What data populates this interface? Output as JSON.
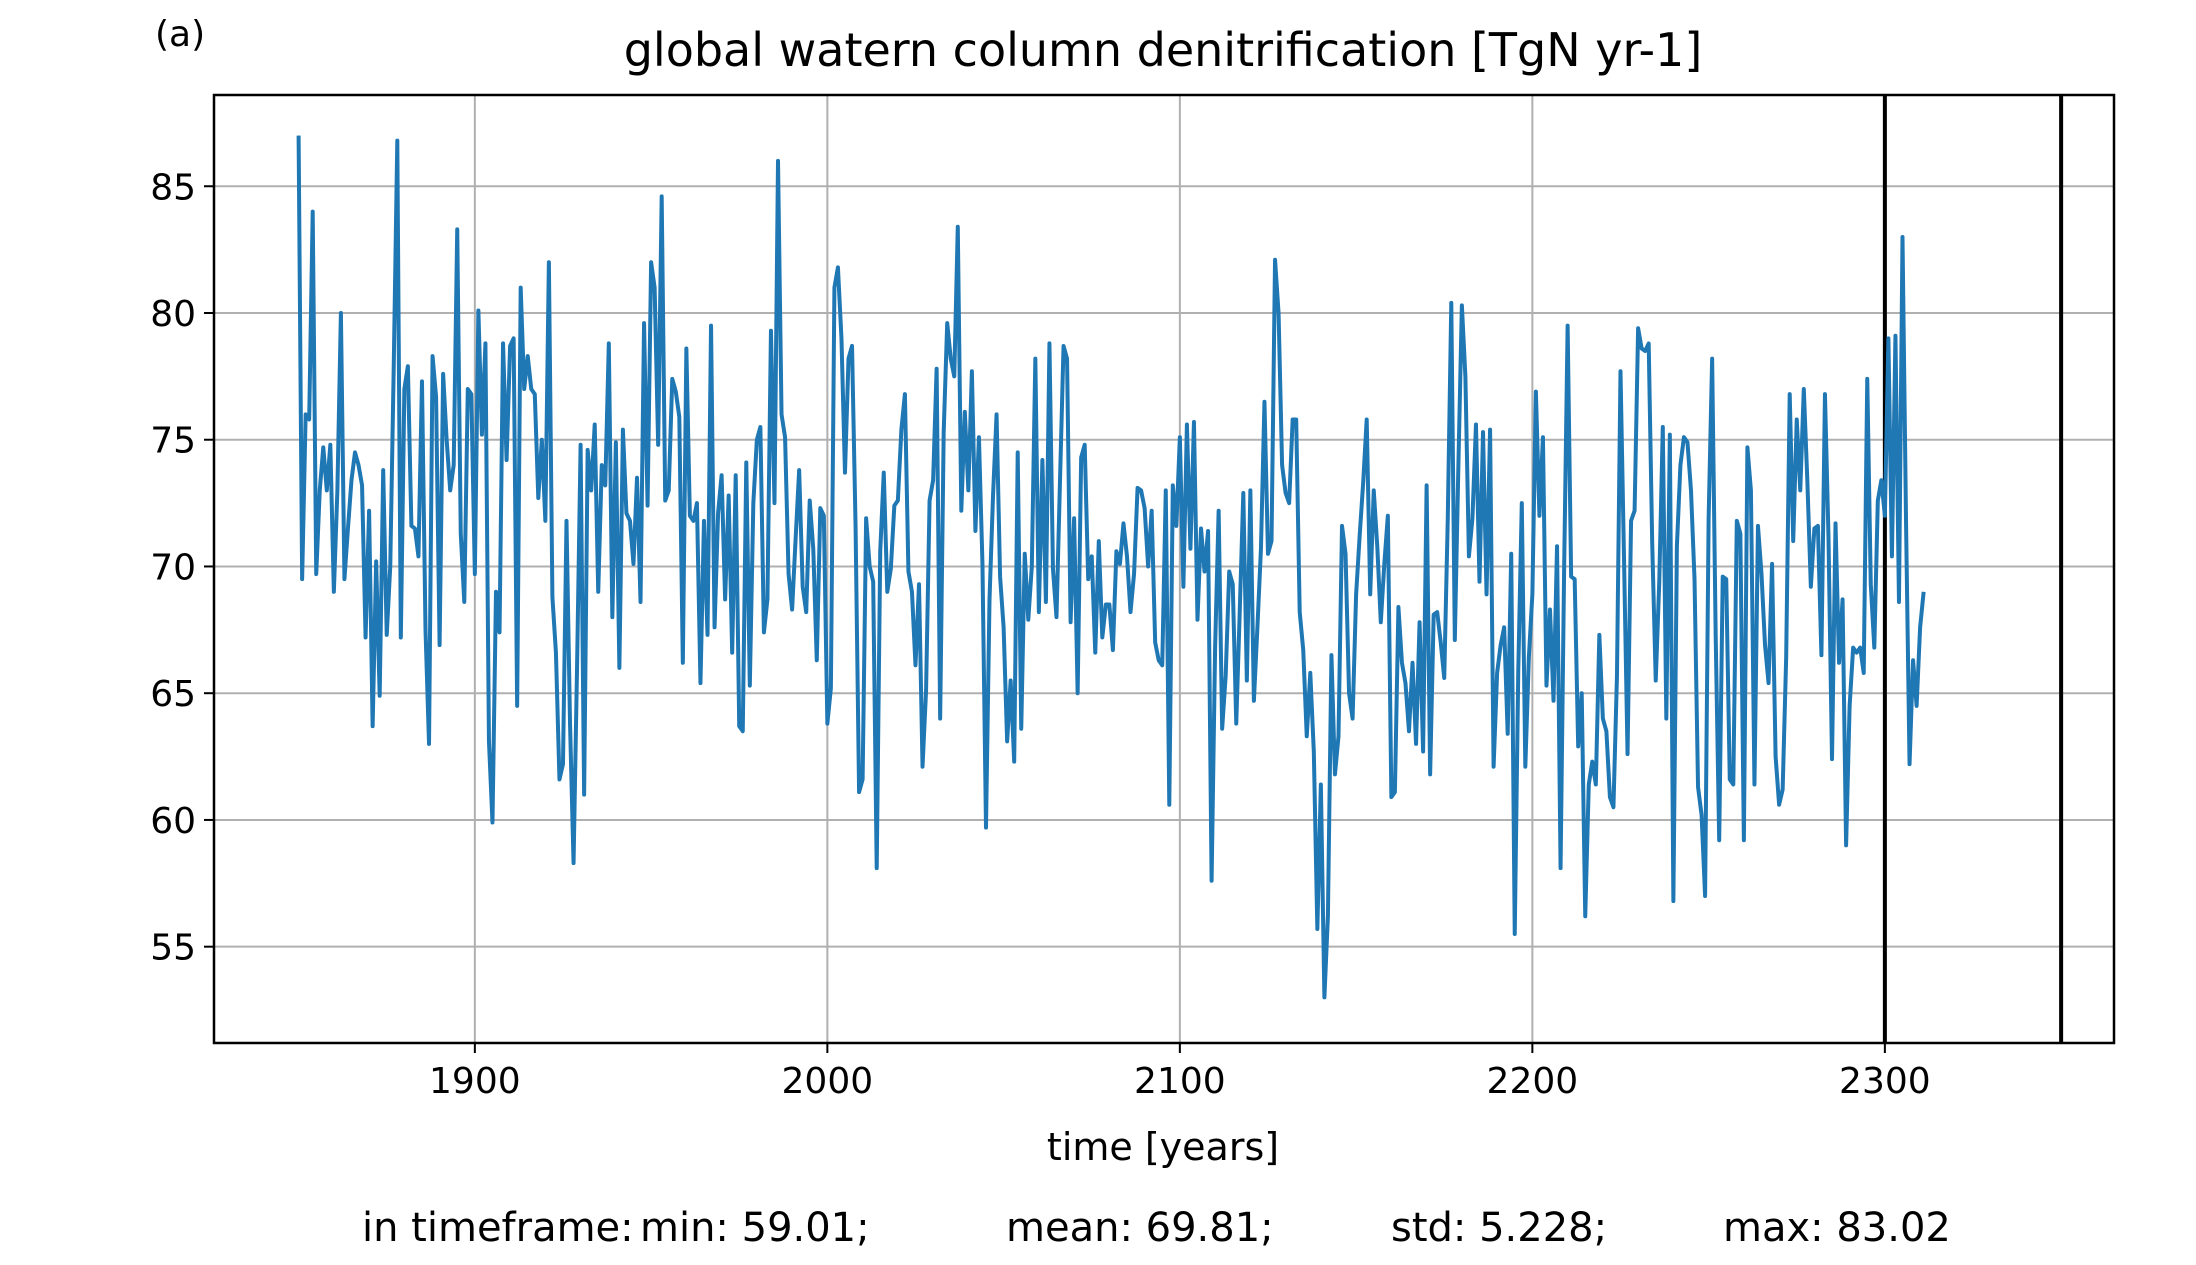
{
  "panel_label": "(a)",
  "chart_data": {
    "type": "line",
    "title": "global watern column denitrification [TgN yr-1]",
    "xlabel": "time [years]",
    "ylabel": "",
    "xlim": [
      1826,
      2365
    ],
    "ylim": [
      51.2,
      88.6
    ],
    "xticks": [
      1900,
      2000,
      2100,
      2200,
      2300
    ],
    "yticks": [
      55,
      60,
      65,
      70,
      75,
      80,
      85
    ],
    "grid": true,
    "vlines": [
      2300,
      2350
    ],
    "series_color": "#1f77b4",
    "series": [
      {
        "name": "",
        "x_start": 1850,
        "x_step": 1,
        "values": [
          87.0,
          69.5,
          76.0,
          75.8,
          84.0,
          69.7,
          73.0,
          74.7,
          73.0,
          74.8,
          69.0,
          73.0,
          80.0,
          69.5,
          71.5,
          73.4,
          74.5,
          74.0,
          73.2,
          67.2,
          72.2,
          63.7,
          70.2,
          64.9,
          73.8,
          67.3,
          70.0,
          78.0,
          86.8,
          67.2,
          77.0,
          77.9,
          71.6,
          71.5,
          70.4,
          77.3,
          67.5,
          63.0,
          78.3,
          76.7,
          66.9,
          77.6,
          75.0,
          73.0,
          74.0,
          83.3,
          71.3,
          68.6,
          77.0,
          76.8,
          69.7,
          80.1,
          75.2,
          78.8,
          63.1,
          59.9,
          69.0,
          67.4,
          78.8,
          74.2,
          78.7,
          79.0,
          64.5,
          81.0,
          77.0,
          78.3,
          77.0,
          76.8,
          72.7,
          75.0,
          71.8,
          82.0,
          68.8,
          66.6,
          61.6,
          62.2,
          71.8,
          63.8,
          58.3,
          66.1,
          74.8,
          61.0,
          74.6,
          73.0,
          75.6,
          69.0,
          74.0,
          73.2,
          78.8,
          68.0,
          74.9,
          66.0,
          75.4,
          72.1,
          71.8,
          70.1,
          73.5,
          68.6,
          79.6,
          72.4,
          82.0,
          81.0,
          74.8,
          84.6,
          72.6,
          73.0,
          77.4,
          76.9,
          75.9,
          66.2,
          78.6,
          72.0,
          71.8,
          72.5,
          65.4,
          71.8,
          67.3,
          79.5,
          67.6,
          72.1,
          73.6,
          68.7,
          72.8,
          66.6,
          73.6,
          63.7,
          63.5,
          74.1,
          65.3,
          72.5,
          75.0,
          75.5,
          67.4,
          68.7,
          79.3,
          72.5,
          86.0,
          76.0,
          75.1,
          69.7,
          68.3,
          71.1,
          73.8,
          69.2,
          68.2,
          72.6,
          70.7,
          66.3,
          72.3,
          72.0,
          63.8,
          65.2,
          81.0,
          81.8,
          79.0,
          73.7,
          78.2,
          78.7,
          71.6,
          61.1,
          61.6,
          71.9,
          70.0,
          69.4,
          58.1,
          70.6,
          73.7,
          69.0,
          69.9,
          72.4,
          72.6,
          75.4,
          76.8,
          69.8,
          69.0,
          66.1,
          69.3,
          62.1,
          65.1,
          72.6,
          73.4,
          77.8,
          64.0,
          75.3,
          79.6,
          78.2,
          77.5,
          83.4,
          72.2,
          76.1,
          73.0,
          77.7,
          71.4,
          75.1,
          70.1,
          59.7,
          68.7,
          72.8,
          76.0,
          69.6,
          67.6,
          63.1,
          65.5,
          62.3,
          74.5,
          63.6,
          70.5,
          67.9,
          70.0,
          78.2,
          68.2,
          74.2,
          68.6,
          78.8,
          69.9,
          68.0,
          73.4,
          78.7,
          78.2,
          67.8,
          71.9,
          65.0,
          74.3,
          74.8,
          69.5,
          70.4,
          66.6,
          71.0,
          67.2,
          68.5,
          68.5,
          66.7,
          70.6,
          70.1,
          71.7,
          70.4,
          68.2,
          69.7,
          73.1,
          73.0,
          72.3,
          70.0,
          72.2,
          67.0,
          66.3,
          66.1,
          73.0,
          60.6,
          73.2,
          71.6,
          75.1,
          69.2,
          75.6,
          70.7,
          75.7,
          67.9,
          71.5,
          69.8,
          71.4,
          57.6,
          66.8,
          72.2,
          63.6,
          65.7,
          69.8,
          69.3,
          63.8,
          68.3,
          72.9,
          65.5,
          73.0,
          64.7,
          67.6,
          70.7,
          76.5,
          70.5,
          71.0,
          82.1,
          80.0,
          74.0,
          72.9,
          72.5,
          75.8,
          75.8,
          68.2,
          66.7,
          63.3,
          65.8,
          62.7,
          55.7,
          61.4,
          53.0,
          56.2,
          66.5,
          61.8,
          63.3,
          71.6,
          70.5,
          65.0,
          64.0,
          68.9,
          71.2,
          73.3,
          75.8,
          68.9,
          73.0,
          70.8,
          67.8,
          70.1,
          72.0,
          60.9,
          61.1,
          68.4,
          66.2,
          65.4,
          63.5,
          66.2,
          63.0,
          67.8,
          62.7,
          73.2,
          61.8,
          68.1,
          68.2,
          67.0,
          65.6,
          71.9,
          80.4,
          67.1,
          73.9,
          80.3,
          77.5,
          70.4,
          71.9,
          75.6,
          69.4,
          75.3,
          68.9,
          75.4,
          62.1,
          65.8,
          66.9,
          67.6,
          63.4,
          70.5,
          55.5,
          65.9,
          72.5,
          62.1,
          66.4,
          68.9,
          76.9,
          72.0,
          75.1,
          65.3,
          68.3,
          64.7,
          70.8,
          58.1,
          69.8,
          79.5,
          69.6,
          69.5,
          62.9,
          65.0,
          56.2,
          61.4,
          62.3,
          61.4,
          67.3,
          64.0,
          63.5,
          60.9,
          60.5,
          65.7,
          77.7,
          70.3,
          62.6,
          71.8,
          72.2,
          79.4,
          78.6,
          78.5,
          78.8,
          70.9,
          65.5,
          69.4,
          75.5,
          64.0,
          75.2,
          56.8,
          70.8,
          74.0,
          75.1,
          74.9,
          73.0,
          69.5,
          61.3,
          60.2,
          57.0,
          71.9,
          78.2,
          67.3,
          59.2,
          69.6,
          69.5,
          61.6,
          61.4,
          71.8,
          71.3,
          59.2,
          74.7,
          73.0,
          61.4,
          71.6,
          69.7,
          66.9,
          65.4,
          70.1,
          62.5,
          60.6,
          61.2,
          66.4,
          76.8,
          71.0,
          75.8,
          73.0,
          77.0,
          73.4,
          69.2,
          71.5,
          71.6,
          66.5,
          76.8,
          71.2,
          62.4,
          71.7,
          66.2,
          68.7,
          59.0,
          64.5,
          66.8,
          66.6,
          66.8,
          65.8,
          77.4,
          69.3,
          66.8,
          72.6,
          73.4,
          72.0,
          79.0,
          70.4,
          79.1,
          68.6,
          83.0,
          71.8,
          62.2,
          66.3,
          64.5,
          67.6,
          69.0
        ]
      }
    ],
    "stats": {
      "label": "in timeframe:",
      "min": "min: 59.01;",
      "mean": "mean: 69.81;",
      "std": "std: 5.228;",
      "max": "max: 83.02"
    }
  }
}
